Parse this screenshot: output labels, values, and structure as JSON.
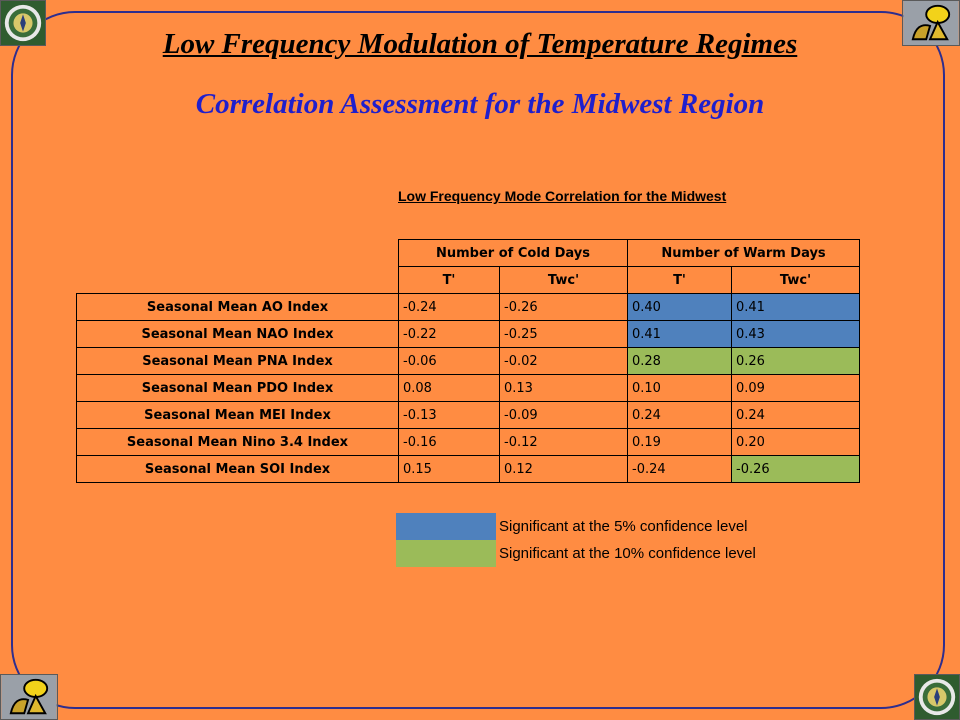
{
  "slide": {
    "title": "Low Frequency Modulation of Temperature Regimes",
    "subtitle": "Correlation Assessment for the Midwest Region"
  },
  "logos": {
    "doe": "doe-seal-icon",
    "gt": "georgia-tech-buzz-icon"
  },
  "table": {
    "caption": "Low Frequency Mode Correlation for the Midwest",
    "group_headers": [
      "Number of Cold Days",
      "Number of Warm Days"
    ],
    "sub_headers": [
      "T'",
      "Twc'",
      "T'",
      "Twc'"
    ],
    "rows": [
      {
        "label": "Seasonal Mean AO Index",
        "values": [
          "-0.24",
          "-0.26",
          "0.40",
          "0.41"
        ],
        "significance": [
          "",
          "",
          "5%",
          "5%"
        ]
      },
      {
        "label": "Seasonal Mean NAO Index",
        "values": [
          "-0.22",
          "-0.25",
          "0.41",
          "0.43"
        ],
        "significance": [
          "",
          "",
          "5%",
          "5%"
        ]
      },
      {
        "label": "Seasonal Mean PNA Index",
        "values": [
          "-0.06",
          "-0.02",
          "0.28",
          "0.26"
        ],
        "significance": [
          "",
          "",
          "10%",
          "10%"
        ]
      },
      {
        "label": "Seasonal Mean PDO Index",
        "values": [
          "0.08",
          "0.13",
          "0.10",
          "0.09"
        ],
        "significance": [
          "",
          "",
          "",
          ""
        ]
      },
      {
        "label": "Seasonal Mean MEI Index",
        "values": [
          "-0.13",
          "-0.09",
          "0.24",
          "0.24"
        ],
        "significance": [
          "",
          "",
          "",
          ""
        ]
      },
      {
        "label": "Seasonal Mean Nino 3.4 Index",
        "values": [
          "-0.16",
          "-0.12",
          "0.19",
          "0.20"
        ],
        "significance": [
          "",
          "",
          "",
          ""
        ]
      },
      {
        "label": "Seasonal Mean SOI Index",
        "values": [
          "0.15",
          "0.12",
          "-0.24",
          "-0.26"
        ],
        "significance": [
          "",
          "",
          "",
          "10%"
        ]
      }
    ]
  },
  "legend": [
    {
      "color": "#4F81BD",
      "text": "Significant at the 5% confidence level"
    },
    {
      "color": "#9BBB59",
      "text": "Significant at the 10% confidence level"
    }
  ],
  "colors": {
    "background": "#FF8C42",
    "frame": "#2E2E8E",
    "subtitle": "#1F1FCC",
    "significant_5": "#4F81BD",
    "significant_10": "#9BBB59"
  }
}
